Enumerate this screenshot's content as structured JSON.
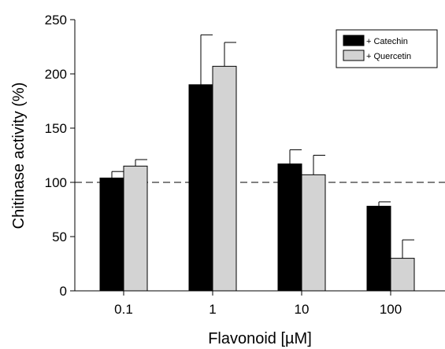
{
  "chart_data": {
    "type": "bar",
    "xlabel": "Flavonoid [µM]",
    "ylabel": "Chitinase activity (%)",
    "ylim": [
      0,
      250
    ],
    "yticks": [
      0,
      50,
      100,
      150,
      200,
      250
    ],
    "categories": [
      "0.1",
      "1",
      "10",
      "100"
    ],
    "series": [
      {
        "name": "+ Catechin",
        "color": "#000000",
        "values": [
          104,
          190,
          117,
          78
        ],
        "errors": [
          6,
          46,
          13,
          4
        ]
      },
      {
        "name": "+ Quercetin",
        "color": "#d3d3d3",
        "values": [
          115,
          207,
          107,
          30
        ],
        "errors": [
          6,
          22,
          18,
          17
        ]
      }
    ],
    "reference_line": {
      "y": 100,
      "style": "dashed"
    },
    "legend_position": "top-right",
    "grid": false
  }
}
